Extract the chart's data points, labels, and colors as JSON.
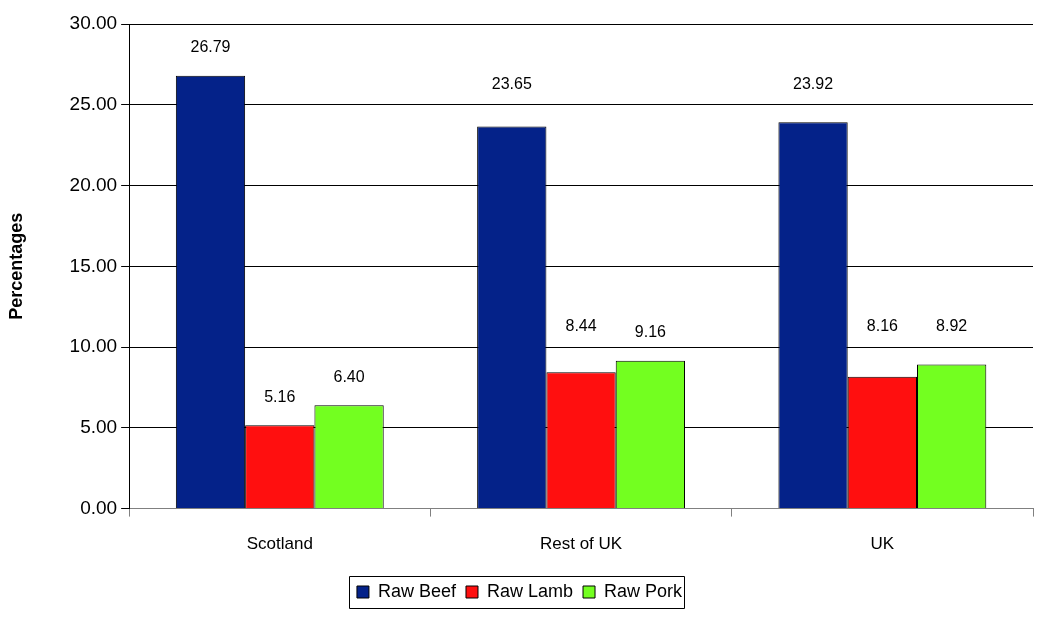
{
  "chart_data": {
    "type": "bar",
    "ylabel": "Percentages",
    "categories": [
      "Scotland",
      "Rest of UK",
      "UK"
    ],
    "series": [
      {
        "name": "Raw Beef",
        "color": "#042289",
        "values": [
          26.79,
          23.65,
          23.92
        ],
        "value_labels": [
          "26.79",
          "23.65",
          "23.92"
        ]
      },
      {
        "name": "Raw Lamb",
        "color": "#ff0f0f",
        "values": [
          5.16,
          8.44,
          8.16
        ],
        "value_labels": [
          "5.16",
          "8.44",
          "8.16"
        ]
      },
      {
        "name": "Raw Pork",
        "color": "#73ff20",
        "values": [
          6.4,
          9.16,
          8.92
        ],
        "value_labels": [
          "6.40",
          "9.16",
          "8.92"
        ]
      }
    ],
    "ylim": [
      0,
      30
    ],
    "yticks": [
      {
        "value": 0,
        "label": "0.00"
      },
      {
        "value": 5,
        "label": "5.00"
      },
      {
        "value": 10,
        "label": "10.00"
      },
      {
        "value": 15,
        "label": "15.00"
      },
      {
        "value": 20,
        "label": "20.00"
      },
      {
        "value": 25,
        "label": "25.00"
      },
      {
        "value": 30,
        "label": "30.00"
      }
    ],
    "grid": "y",
    "legend": "bottom"
  }
}
